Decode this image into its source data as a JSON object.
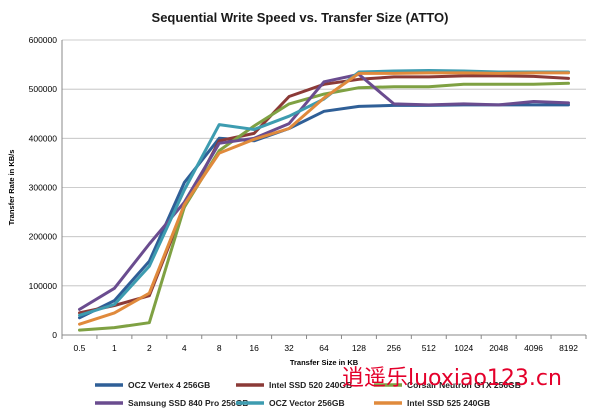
{
  "chart_data": {
    "type": "line",
    "title": "Sequential Write Speed vs. Transfer Size (ATTO)",
    "xlabel": "Transfer Size in KB",
    "ylabel": "Transfer Rate in KB/s",
    "ylim": [
      0,
      600000
    ],
    "yticks": [
      "0",
      "100000",
      "200000",
      "300000",
      "400000",
      "500000",
      "600000"
    ],
    "categories": [
      "0.5",
      "1",
      "2",
      "4",
      "8",
      "16",
      "32",
      "64",
      "128",
      "256",
      "512",
      "1024",
      "2048",
      "4096",
      "8192"
    ],
    "grid": "horizontal",
    "legend_position": "bottom",
    "series": [
      {
        "name": "OCZ Vertex 4 256GB",
        "color": "#2f5f97",
        "values": [
          35000,
          70000,
          150000,
          310000,
          400000,
          395000,
          420000,
          455000,
          465000,
          467000,
          467000,
          468000,
          468000,
          468000,
          468000
        ]
      },
      {
        "name": "Intel SSD 520 240GB",
        "color": "#8b3a37",
        "values": [
          45000,
          60000,
          80000,
          260000,
          395000,
          410000,
          485000,
          510000,
          520000,
          525000,
          525000,
          527000,
          527000,
          526000,
          522000
        ]
      },
      {
        "name": "Corsair Neutron GTX 256GB",
        "color": "#7fa143",
        "values": [
          10000,
          15000,
          25000,
          260000,
          375000,
          425000,
          470000,
          490000,
          503000,
          505000,
          505000,
          510000,
          510000,
          510000,
          512000
        ]
      },
      {
        "name": "Samsung SSD 840 Pro 256GB",
        "color": "#6a4c8f",
        "values": [
          52000,
          95000,
          185000,
          270000,
          390000,
          400000,
          430000,
          515000,
          530000,
          470000,
          468000,
          470000,
          468000,
          475000,
          472000
        ]
      },
      {
        "name": "OCZ Vector 256GB",
        "color": "#3d9cb0",
        "values": [
          40000,
          62000,
          140000,
          295000,
          428000,
          418000,
          445000,
          480000,
          535000,
          537000,
          538000,
          537000,
          535000,
          535000,
          535000
        ]
      },
      {
        "name": "Intel SSD 525 240GB",
        "color": "#e08a3c",
        "values": [
          22000,
          45000,
          85000,
          265000,
          370000,
          398000,
          420000,
          482000,
          532000,
          532000,
          533000,
          533000,
          532000,
          533000,
          533000
        ]
      }
    ]
  },
  "watermark": "逍遥乐luoxiao123.cn"
}
